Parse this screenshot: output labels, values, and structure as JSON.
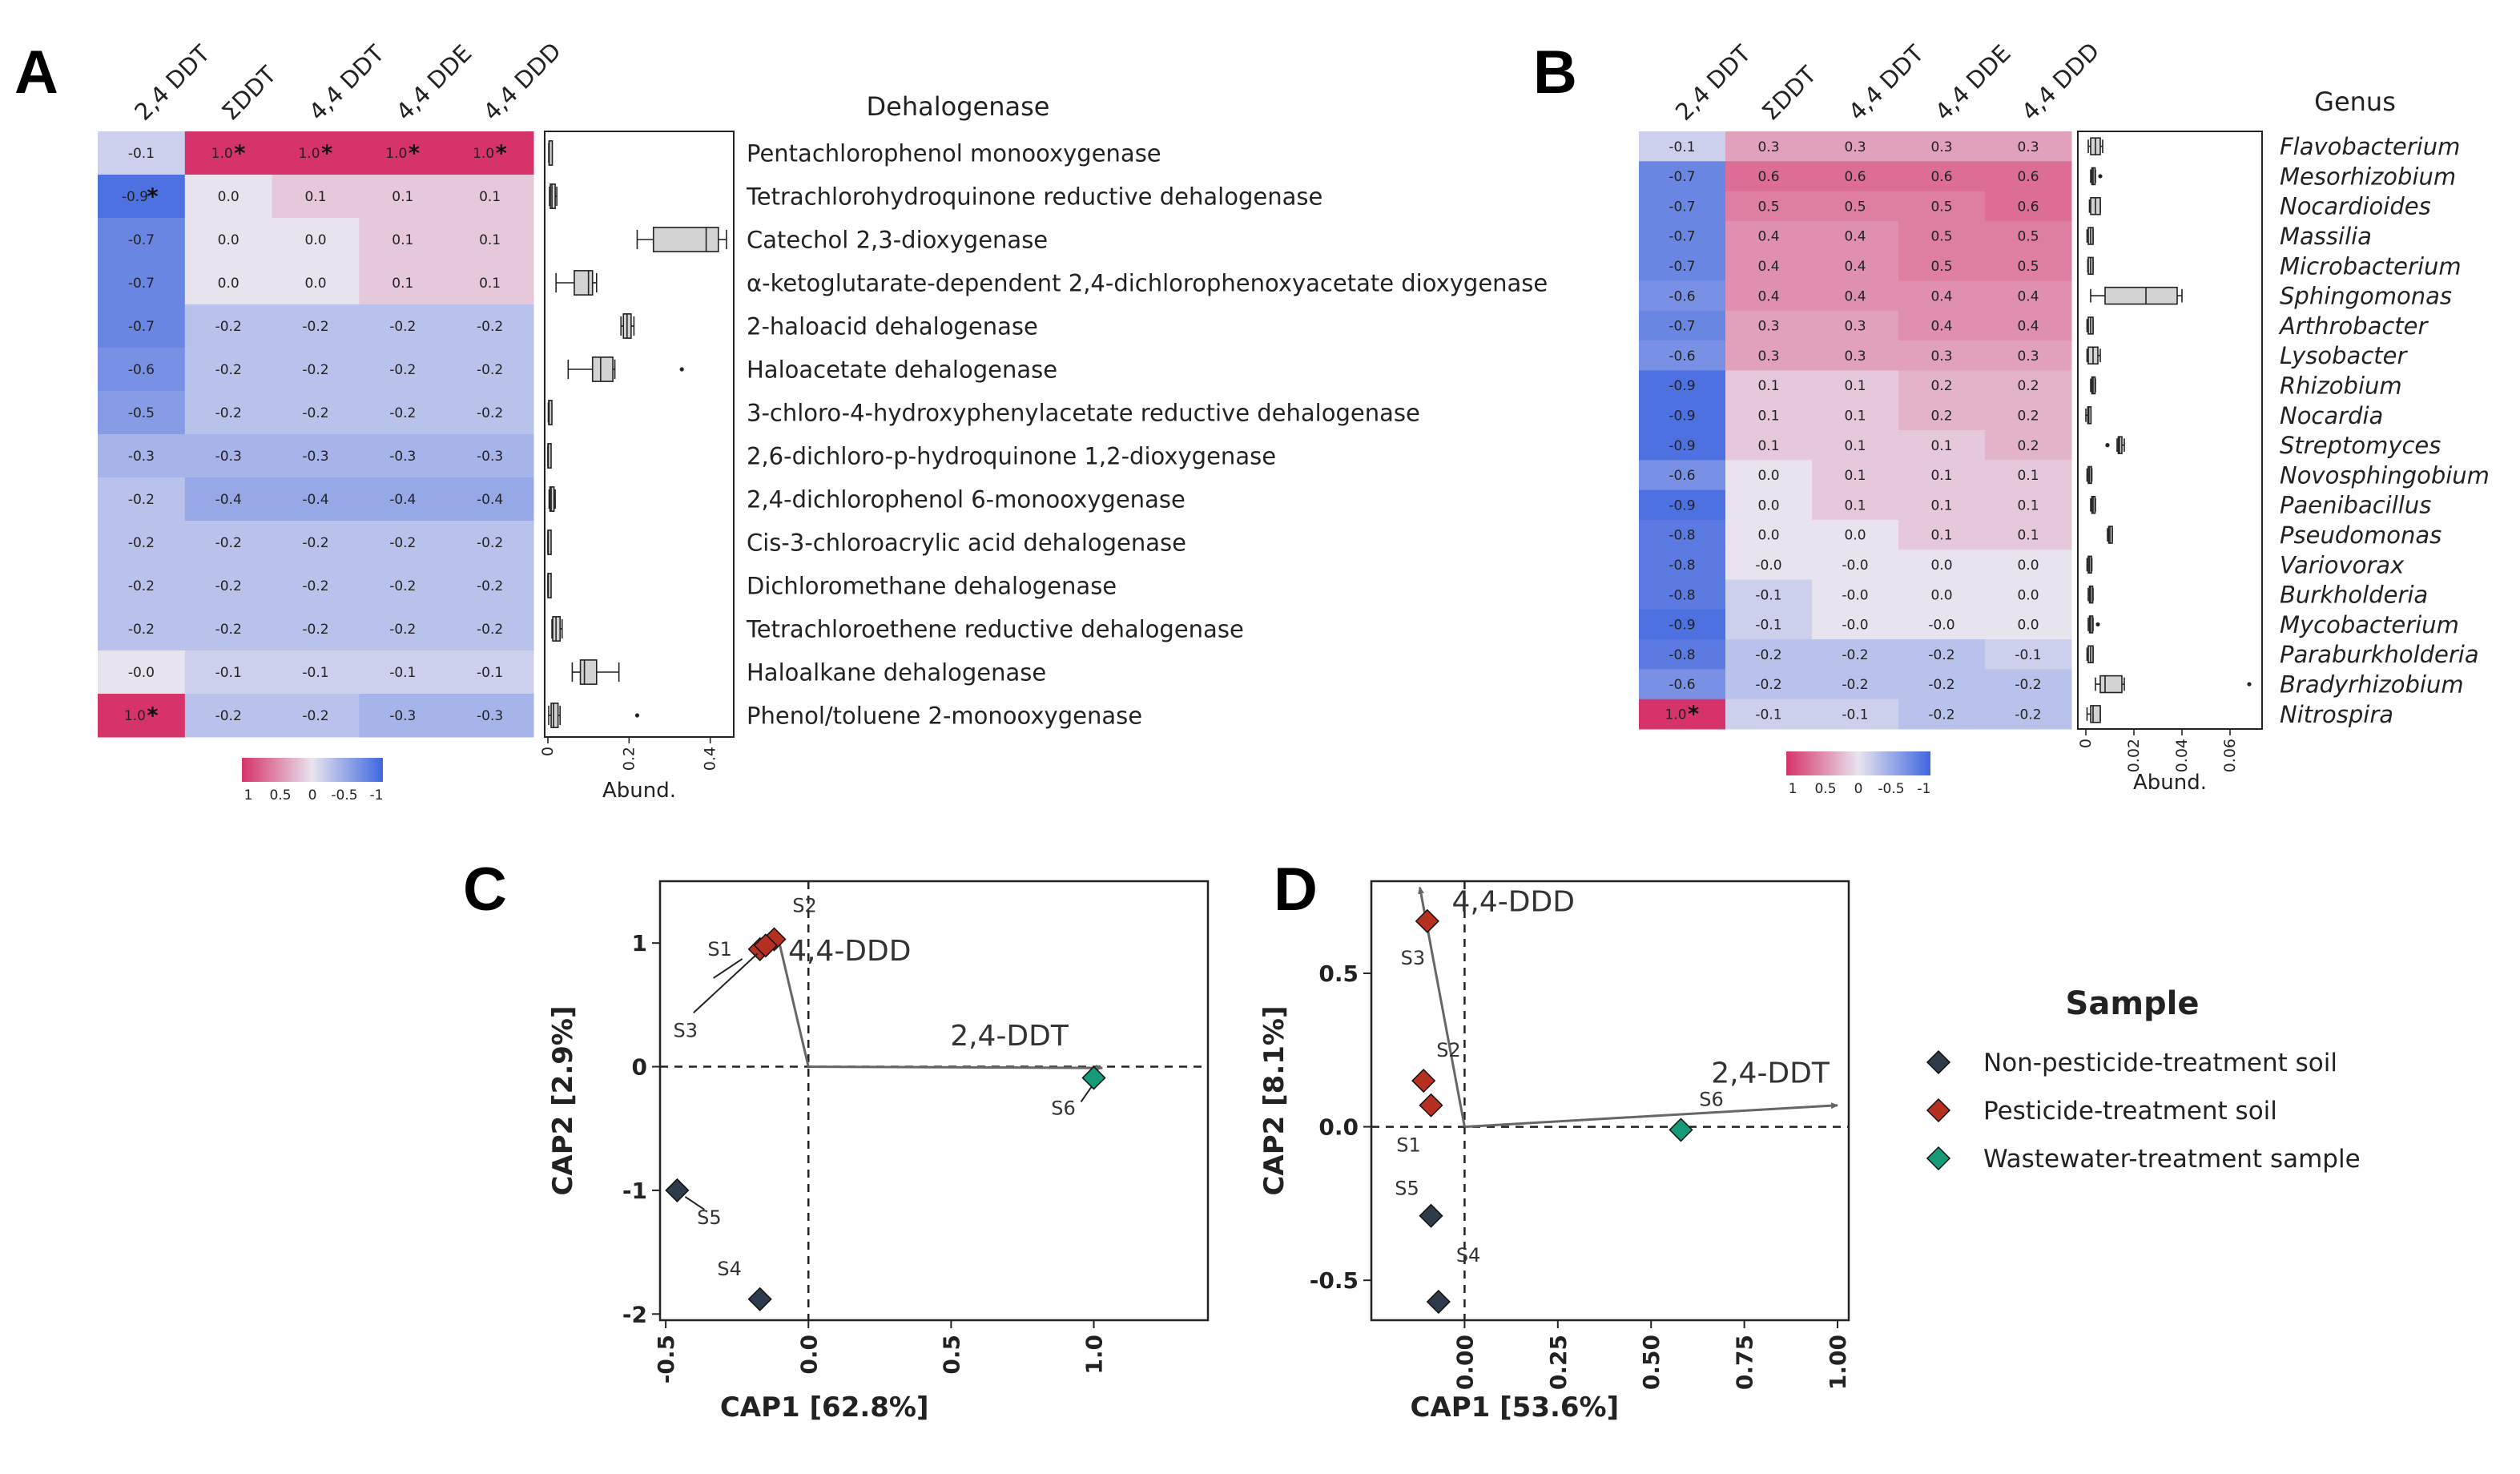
{
  "figure": {
    "panel_labels": [
      "A",
      "B",
      "C",
      "D"
    ]
  },
  "chart_data": [
    {
      "panel": "A",
      "type": "heatmap",
      "columns": [
        "2,4 DDT",
        "ΣDDT",
        "4,4 DDT",
        "4,4 DDE",
        "4,4 DDD"
      ],
      "row_title": "Dehalogenase",
      "rows": [
        "Pentachlorophenol monooxygenase",
        "Tetrachlorohydroquinone reductive dehalogenase",
        "Catechol 2,3-dioxygenase",
        "α-ketoglutarate-dependent 2,4-dichlorophenoxyacetate dioxygenase",
        "2-haloacid dehalogenase",
        "Haloacetate dehalogenase",
        "3-chloro-4-hydroxyphenylacetate reductive dehalogenase",
        "2,6-dichloro-p-hydroquinone 1,2-dioxygenase",
        "2,4-dichlorophenol 6-monooxygenase",
        "Cis-3-chloroacrylic acid dehalogenase",
        "Dichloromethane dehalogenase",
        "Tetrachloroethene reductive dehalogenase",
        "Haloalkane dehalogenase",
        "Phenol/toluene 2-monooxygenase"
      ],
      "values": [
        [
          -0.1,
          1.0,
          1.0,
          1.0,
          1.0
        ],
        [
          -0.9,
          0.0,
          0.1,
          0.1,
          0.1
        ],
        [
          -0.7,
          0.0,
          0.0,
          0.1,
          0.1
        ],
        [
          -0.7,
          0.0,
          0.0,
          0.1,
          0.1
        ],
        [
          -0.7,
          -0.2,
          -0.2,
          -0.2,
          -0.2
        ],
        [
          -0.6,
          -0.2,
          -0.2,
          -0.2,
          -0.2
        ],
        [
          -0.5,
          -0.2,
          -0.2,
          -0.2,
          -0.2
        ],
        [
          -0.3,
          -0.3,
          -0.3,
          -0.3,
          -0.3
        ],
        [
          -0.2,
          -0.4,
          -0.4,
          -0.4,
          -0.4
        ],
        [
          -0.2,
          -0.2,
          -0.2,
          -0.2,
          -0.2
        ],
        [
          -0.2,
          -0.2,
          -0.2,
          -0.2,
          -0.2
        ],
        [
          -0.2,
          -0.2,
          -0.2,
          -0.2,
          -0.2
        ],
        [
          -0.0,
          -0.1,
          -0.1,
          -0.1,
          -0.1
        ],
        [
          1.0,
          -0.2,
          -0.2,
          -0.3,
          -0.3
        ]
      ],
      "labels": [
        [
          "-0.1",
          "1.0",
          "1.0",
          "1.0",
          "1.0"
        ],
        [
          "-0.9",
          "0.0",
          "0.1",
          "0.1",
          "0.1"
        ],
        [
          "-0.7",
          "0.0",
          "0.0",
          "0.1",
          "0.1"
        ],
        [
          "-0.7",
          "0.0",
          "0.0",
          "0.1",
          "0.1"
        ],
        [
          "-0.7",
          "-0.2",
          "-0.2",
          "-0.2",
          "-0.2"
        ],
        [
          "-0.6",
          "-0.2",
          "-0.2",
          "-0.2",
          "-0.2"
        ],
        [
          "-0.5",
          "-0.2",
          "-0.2",
          "-0.2",
          "-0.2"
        ],
        [
          "-0.3",
          "-0.3",
          "-0.3",
          "-0.3",
          "-0.3"
        ],
        [
          "-0.2",
          "-0.4",
          "-0.4",
          "-0.4",
          "-0.4"
        ],
        [
          "-0.2",
          "-0.2",
          "-0.2",
          "-0.2",
          "-0.2"
        ],
        [
          "-0.2",
          "-0.2",
          "-0.2",
          "-0.2",
          "-0.2"
        ],
        [
          "-0.2",
          "-0.2",
          "-0.2",
          "-0.2",
          "-0.2"
        ],
        [
          "-0.0",
          "-0.1",
          "-0.1",
          "-0.1",
          "-0.1"
        ],
        [
          "1.0",
          "-0.2",
          "-0.2",
          "-0.3",
          "-0.3"
        ]
      ],
      "significant": [
        [
          0,
          1
        ],
        [
          0,
          2
        ],
        [
          0,
          3
        ],
        [
          0,
          4
        ],
        [
          1,
          0
        ],
        [
          13,
          0
        ]
      ],
      "significance_marker": "*",
      "colorbar": {
        "ticks": [
          "1",
          "0.5",
          "0",
          "-0.5",
          "-1"
        ],
        "high_color": "#d6336a",
        "mid_color": "#e8e4ee",
        "low_color": "#3f67e0"
      },
      "boxplot": {
        "xlabel": "Abund.",
        "xlim": [
          0,
          0.45
        ],
        "ticks": [
          0,
          0.2,
          0.4
        ],
        "tick_labels": [
          "0",
          "0.2",
          "0.4"
        ],
        "stats": [
          {
            "min": 0.002,
            "q1": 0.003,
            "med": 0.003,
            "q3": 0.004,
            "max": 0.005
          },
          {
            "min": 0.004,
            "q1": 0.006,
            "med": 0.01,
            "q3": 0.018,
            "max": 0.022
          },
          {
            "min": 0.22,
            "q1": 0.26,
            "med": 0.39,
            "q3": 0.42,
            "max": 0.44
          },
          {
            "min": 0.02,
            "q1": 0.065,
            "med": 0.1,
            "q3": 0.11,
            "max": 0.12
          },
          {
            "min": 0.18,
            "q1": 0.186,
            "med": 0.195,
            "q3": 0.205,
            "max": 0.212
          },
          {
            "min": 0.05,
            "q1": 0.11,
            "med": 0.13,
            "q3": 0.16,
            "max": 0.165,
            "outliers": [
              0.33
            ]
          },
          {
            "min": 0.001,
            "q1": 0.002,
            "med": 0.003,
            "q3": 0.004,
            "max": 0.005
          },
          {
            "min": 0.0,
            "q1": 0.0,
            "med": 0.001,
            "q3": 0.001,
            "max": 0.002
          },
          {
            "min": 0.003,
            "q1": 0.005,
            "med": 0.008,
            "q3": 0.015,
            "max": 0.018
          },
          {
            "min": 0.0,
            "q1": 0.0,
            "med": 0.001,
            "q3": 0.001,
            "max": 0.002
          },
          {
            "min": 0.0,
            "q1": 0.0,
            "med": 0.001,
            "q3": 0.001,
            "max": 0.002
          },
          {
            "min": 0.01,
            "q1": 0.012,
            "med": 0.02,
            "q3": 0.03,
            "max": 0.035
          },
          {
            "min": 0.06,
            "q1": 0.08,
            "med": 0.09,
            "q3": 0.12,
            "max": 0.175
          },
          {
            "min": 0.002,
            "q1": 0.008,
            "med": 0.014,
            "q3": 0.025,
            "max": 0.03,
            "outliers": [
              0.22
            ]
          }
        ]
      }
    },
    {
      "panel": "B",
      "type": "heatmap",
      "columns": [
        "2,4 DDT",
        "ΣDDT",
        "4,4 DDT",
        "4,4 DDE",
        "4,4 DDD"
      ],
      "row_title": "Genus",
      "rows": [
        "Flavobacterium",
        "Mesorhizobium",
        "Nocardioides",
        "Massilia",
        "Microbacterium",
        "Sphingomonas",
        "Arthrobacter",
        "Lysobacter",
        "Rhizobium",
        "Nocardia",
        "Streptomyces",
        "Novosphingobium",
        "Paenibacillus",
        "Pseudomonas",
        "Variovorax",
        "Burkholderia",
        "Mycobacterium",
        "Paraburkholderia",
        "Bradyrhizobium",
        "Nitrospira"
      ],
      "values": [
        [
          -0.1,
          0.3,
          0.3,
          0.3,
          0.3
        ],
        [
          -0.7,
          0.6,
          0.6,
          0.6,
          0.6
        ],
        [
          -0.7,
          0.5,
          0.5,
          0.5,
          0.6
        ],
        [
          -0.7,
          0.4,
          0.4,
          0.5,
          0.5
        ],
        [
          -0.7,
          0.4,
          0.4,
          0.5,
          0.5
        ],
        [
          -0.6,
          0.4,
          0.4,
          0.4,
          0.4
        ],
        [
          -0.7,
          0.3,
          0.3,
          0.4,
          0.4
        ],
        [
          -0.6,
          0.3,
          0.3,
          0.3,
          0.3
        ],
        [
          -0.9,
          0.1,
          0.1,
          0.2,
          0.2
        ],
        [
          -0.9,
          0.1,
          0.1,
          0.2,
          0.2
        ],
        [
          -0.9,
          0.1,
          0.1,
          0.1,
          0.2
        ],
        [
          -0.6,
          0.0,
          0.1,
          0.1,
          0.1
        ],
        [
          -0.9,
          0.0,
          0.1,
          0.1,
          0.1
        ],
        [
          -0.8,
          0.0,
          0.0,
          0.1,
          0.1
        ],
        [
          -0.8,
          -0.0,
          -0.0,
          0.0,
          0.0
        ],
        [
          -0.8,
          -0.1,
          -0.0,
          0.0,
          0.0
        ],
        [
          -0.9,
          -0.1,
          -0.0,
          -0.0,
          0.0
        ],
        [
          -0.8,
          -0.2,
          -0.2,
          -0.2,
          -0.1
        ],
        [
          -0.6,
          -0.2,
          -0.2,
          -0.2,
          -0.2
        ],
        [
          1.0,
          -0.1,
          -0.1,
          -0.2,
          -0.2
        ]
      ],
      "labels": [
        [
          "-0.1",
          "0.3",
          "0.3",
          "0.3",
          "0.3"
        ],
        [
          "-0.7",
          "0.6",
          "0.6",
          "0.6",
          "0.6"
        ],
        [
          "-0.7",
          "0.5",
          "0.5",
          "0.5",
          "0.6"
        ],
        [
          "-0.7",
          "0.4",
          "0.4",
          "0.5",
          "0.5"
        ],
        [
          "-0.7",
          "0.4",
          "0.4",
          "0.5",
          "0.5"
        ],
        [
          "-0.6",
          "0.4",
          "0.4",
          "0.4",
          "0.4"
        ],
        [
          "-0.7",
          "0.3",
          "0.3",
          "0.4",
          "0.4"
        ],
        [
          "-0.6",
          "0.3",
          "0.3",
          "0.3",
          "0.3"
        ],
        [
          "-0.9",
          "0.1",
          "0.1",
          "0.2",
          "0.2"
        ],
        [
          "-0.9",
          "0.1",
          "0.1",
          "0.2",
          "0.2"
        ],
        [
          "-0.9",
          "0.1",
          "0.1",
          "0.1",
          "0.2"
        ],
        [
          "-0.6",
          "0.0",
          "0.1",
          "0.1",
          "0.1"
        ],
        [
          "-0.9",
          "0.0",
          "0.1",
          "0.1",
          "0.1"
        ],
        [
          "-0.8",
          "0.0",
          "0.0",
          "0.1",
          "0.1"
        ],
        [
          "-0.8",
          "-0.0",
          "-0.0",
          "0.0",
          "0.0"
        ],
        [
          "-0.8",
          "-0.1",
          "-0.0",
          "0.0",
          "0.0"
        ],
        [
          "-0.9",
          "-0.1",
          "-0.0",
          "-0.0",
          "0.0"
        ],
        [
          "-0.8",
          "-0.2",
          "-0.2",
          "-0.2",
          "-0.1"
        ],
        [
          "-0.6",
          "-0.2",
          "-0.2",
          "-0.2",
          "-0.2"
        ],
        [
          "1.0",
          "-0.1",
          "-0.1",
          "-0.2",
          "-0.2"
        ]
      ],
      "significant": [
        [
          19,
          0
        ]
      ],
      "significance_marker": "*",
      "colorbar": {
        "ticks": [
          "1",
          "0.5",
          "0",
          "-0.5",
          "-1"
        ]
      },
      "boxplot": {
        "xlabel": "Abund.",
        "xlim": [
          -0.002,
          0.072
        ],
        "ticks": [
          0,
          0.02,
          0.04,
          0.06
        ],
        "tick_labels": [
          "0",
          "0.02",
          "0.04",
          "0.06"
        ],
        "stats": [
          {
            "min": 0.001,
            "q1": 0.002,
            "med": 0.004,
            "q3": 0.006,
            "max": 0.007
          },
          {
            "min": 0.002,
            "q1": 0.0025,
            "med": 0.003,
            "q3": 0.0035,
            "max": 0.004,
            "outliers": [
              0.006
            ]
          },
          {
            "min": 0.0015,
            "q1": 0.002,
            "med": 0.004,
            "q3": 0.006,
            "max": 0.006
          },
          {
            "min": 0.0005,
            "q1": 0.001,
            "med": 0.002,
            "q3": 0.003,
            "max": 0.003
          },
          {
            "min": 0.0008,
            "q1": 0.001,
            "med": 0.002,
            "q3": 0.003,
            "max": 0.003
          },
          {
            "min": 0.002,
            "q1": 0.008,
            "med": 0.025,
            "q3": 0.038,
            "max": 0.04
          },
          {
            "min": 0.0005,
            "q1": 0.001,
            "med": 0.002,
            "q3": 0.003,
            "max": 0.003
          },
          {
            "min": 0.0005,
            "q1": 0.001,
            "med": 0.003,
            "q3": 0.005,
            "max": 0.006
          },
          {
            "min": 0.002,
            "q1": 0.0025,
            "med": 0.003,
            "q3": 0.0035,
            "max": 0.004
          },
          {
            "min": 0.0,
            "q1": 0.0008,
            "med": 0.0012,
            "q3": 0.0015,
            "max": 0.002
          },
          {
            "min": 0.013,
            "q1": 0.0135,
            "med": 0.014,
            "q3": 0.015,
            "max": 0.016,
            "outliers": [
              0.009
            ]
          },
          {
            "min": 0.0005,
            "q1": 0.001,
            "med": 0.0015,
            "q3": 0.002,
            "max": 0.0025
          },
          {
            "min": 0.002,
            "q1": 0.0025,
            "med": 0.003,
            "q3": 0.0035,
            "max": 0.004
          },
          {
            "min": 0.009,
            "q1": 0.0095,
            "med": 0.01,
            "q3": 0.011,
            "max": 0.011
          },
          {
            "min": 0.0005,
            "q1": 0.001,
            "med": 0.0015,
            "q3": 0.002,
            "max": 0.0025
          },
          {
            "min": 0.001,
            "q1": 0.0015,
            "med": 0.002,
            "q3": 0.0025,
            "max": 0.003
          },
          {
            "min": 0.001,
            "q1": 0.0015,
            "med": 0.002,
            "q3": 0.0025,
            "max": 0.003,
            "outliers": [
              0.005
            ]
          },
          {
            "min": 0.0005,
            "q1": 0.001,
            "med": 0.002,
            "q3": 0.003,
            "max": 0.003
          },
          {
            "min": 0.004,
            "q1": 0.006,
            "med": 0.008,
            "q3": 0.015,
            "max": 0.016,
            "outliers": [
              0.068
            ]
          },
          {
            "min": 0.0005,
            "q1": 0.002,
            "med": 0.003,
            "q3": 0.006,
            "max": 0.006
          }
        ]
      }
    },
    {
      "panel": "C",
      "type": "scatter",
      "xlabel": "CAP1   [62.8%]",
      "ylabel": "CAP2   [2.9%]",
      "xlim": [
        -0.52,
        1.4
      ],
      "ylim": [
        -2.05,
        1.5
      ],
      "xticks": [
        -0.5,
        0.0,
        0.5,
        1.0
      ],
      "xtick_labels": [
        "-0.5",
        "0.0",
        "0.5",
        "1.0"
      ],
      "yticks": [
        -2,
        -1,
        0,
        1
      ],
      "ytick_labels": [
        "-2",
        "-1",
        "0",
        "1"
      ],
      "points": [
        {
          "name": "S1",
          "x": -0.17,
          "y": 0.95,
          "group": "pesticide"
        },
        {
          "name": "S2",
          "x": -0.12,
          "y": 1.03,
          "group": "pesticide"
        },
        {
          "name": "S3",
          "x": -0.15,
          "y": 0.98,
          "group": "pesticide"
        },
        {
          "name": "S4",
          "x": -0.17,
          "y": -1.88,
          "group": "non"
        },
        {
          "name": "S5",
          "x": -0.46,
          "y": -1.0,
          "group": "non"
        },
        {
          "name": "S6",
          "x": 1.0,
          "y": -0.09,
          "group": "wastewater"
        }
      ],
      "vectors": [
        {
          "label": "4,4-DDD",
          "x": -0.11,
          "y": 1.08
        },
        {
          "label": "2,4-DDT",
          "x": 1.03,
          "y": -0.01
        }
      ]
    },
    {
      "panel": "D",
      "type": "scatter",
      "xlabel": "CAP1   [53.6%]",
      "ylabel": "CAP2   [8.1%]",
      "xlim": [
        -0.25,
        1.03
      ],
      "ylim": [
        -0.63,
        0.8
      ],
      "xticks": [
        0.0,
        0.25,
        0.5,
        0.75,
        1.0
      ],
      "xtick_labels": [
        "0.00",
        "0.25",
        "0.50",
        "0.75",
        "1.00"
      ],
      "yticks": [
        -0.5,
        0.0,
        0.5
      ],
      "ytick_labels": [
        "-0.5",
        "0.0",
        "0.5"
      ],
      "points": [
        {
          "name": "S1",
          "x": -0.09,
          "y": 0.07,
          "group": "pesticide"
        },
        {
          "name": "S2",
          "x": -0.11,
          "y": 0.15,
          "group": "pesticide"
        },
        {
          "name": "S3",
          "x": -0.1,
          "y": 0.67,
          "group": "pesticide"
        },
        {
          "name": "S4",
          "x": -0.07,
          "y": -0.57,
          "group": "non"
        },
        {
          "name": "S5",
          "x": -0.09,
          "y": -0.29,
          "group": "non"
        },
        {
          "name": "S6",
          "x": 0.58,
          "y": -0.01,
          "group": "wastewater"
        }
      ],
      "vectors": [
        {
          "label": "4,4-DDD",
          "x": -0.12,
          "y": 0.78
        },
        {
          "label": "2,4-DDT",
          "x": 1.0,
          "y": 0.07
        }
      ]
    }
  ],
  "legend": {
    "title": "Sample",
    "entries": [
      {
        "key": "non",
        "label": "Non-pesticide-treatment soil",
        "color": "#2e3b4a"
      },
      {
        "key": "pesticide",
        "label": "Pesticide-treatment soil",
        "color": "#b5301f"
      },
      {
        "key": "wastewater",
        "label": "Wastewater-treatment sample",
        "color": "#179a7a"
      }
    ]
  }
}
